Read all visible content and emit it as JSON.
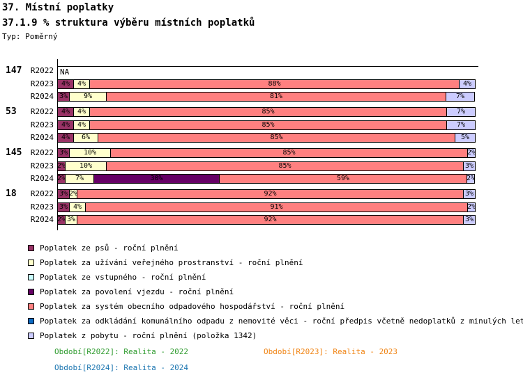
{
  "header": {
    "title": "37. Místní poplatky",
    "subtitle": "37.1.9 % struktura výběru místních poplatků",
    "type_label": "Typ: Poměrný"
  },
  "chart_data": {
    "type": "bar",
    "variant": "horizontal-stacked-percent",
    "unit": "%",
    "xlim": [
      0,
      100
    ],
    "grid": false,
    "na_text": "NA",
    "legend": [
      {
        "key": "psi",
        "label": "Poplatek ze psů - roční plnění",
        "color": "#993366"
      },
      {
        "key": "prostranstvi",
        "label": "Poplatek za užívání veřejného prostranství - roční plnění",
        "color": "#FFFFCC"
      },
      {
        "key": "vstupne",
        "label": "Poplatek ze vstupného - roční plnění",
        "color": "#CCFFFF"
      },
      {
        "key": "vjezd",
        "label": "Poplatek za povolení vjezdu - roční plnění",
        "color": "#660066"
      },
      {
        "key": "odpad",
        "label": "Poplatek za systém obecního odpadového hospodářství - roční plnění",
        "color": "#FF8080"
      },
      {
        "key": "odkladani",
        "label": "Poplatek za odkládání komunálního odpadu z nemovité věci - roční předpis včetně nedoplatků z minulých let",
        "color": "#0B6BC4"
      },
      {
        "key": "pobyt",
        "label": "Poplatek z pobytu - roční plnění (položka 1342)",
        "color": "#CCCCFF"
      }
    ],
    "groups": [
      {
        "label": "147",
        "rows": [
          {
            "period": "R2022",
            "na": true,
            "segments": []
          },
          {
            "period": "R2023",
            "na": false,
            "segments": [
              {
                "key": "psi",
                "value": 4
              },
              {
                "key": "prostranstvi",
                "value": 4
              },
              {
                "key": "odpad",
                "value": 88
              },
              {
                "key": "pobyt",
                "value": 4
              }
            ]
          },
          {
            "period": "R2024",
            "na": false,
            "segments": [
              {
                "key": "psi",
                "value": 3
              },
              {
                "key": "prostranstvi",
                "value": 9
              },
              {
                "key": "odpad",
                "value": 81
              },
              {
                "key": "pobyt",
                "value": 7
              }
            ]
          }
        ]
      },
      {
        "label": "53",
        "rows": [
          {
            "period": "R2022",
            "na": false,
            "segments": [
              {
                "key": "psi",
                "value": 4
              },
              {
                "key": "prostranstvi",
                "value": 4
              },
              {
                "key": "odpad",
                "value": 85
              },
              {
                "key": "pobyt",
                "value": 7
              }
            ]
          },
          {
            "period": "R2023",
            "na": false,
            "segments": [
              {
                "key": "psi",
                "value": 4
              },
              {
                "key": "prostranstvi",
                "value": 4
              },
              {
                "key": "odpad",
                "value": 85
              },
              {
                "key": "pobyt",
                "value": 7
              }
            ]
          },
          {
            "period": "R2024",
            "na": false,
            "segments": [
              {
                "key": "psi",
                "value": 4
              },
              {
                "key": "prostranstvi",
                "value": 6
              },
              {
                "key": "odpad",
                "value": 85
              },
              {
                "key": "pobyt",
                "value": 5
              }
            ]
          }
        ]
      },
      {
        "label": "145",
        "rows": [
          {
            "period": "R2022",
            "na": false,
            "segments": [
              {
                "key": "psi",
                "value": 3
              },
              {
                "key": "prostranstvi",
                "value": 10
              },
              {
                "key": "odpad",
                "value": 85
              },
              {
                "key": "pobyt",
                "value": 2
              }
            ]
          },
          {
            "period": "R2023",
            "na": false,
            "segments": [
              {
                "key": "psi",
                "value": 2
              },
              {
                "key": "prostranstvi",
                "value": 10
              },
              {
                "key": "odpad",
                "value": 85
              },
              {
                "key": "pobyt",
                "value": 3
              }
            ]
          },
          {
            "period": "R2024",
            "na": false,
            "segments": [
              {
                "key": "psi",
                "value": 2
              },
              {
                "key": "prostranstvi",
                "value": 7
              },
              {
                "key": "vjezd",
                "value": 30
              },
              {
                "key": "odpad",
                "value": 59
              },
              {
                "key": "pobyt",
                "value": 2
              }
            ]
          }
        ]
      },
      {
        "label": "18",
        "rows": [
          {
            "period": "R2022",
            "na": false,
            "segments": [
              {
                "key": "psi",
                "value": 3
              },
              {
                "key": "prostranstvi",
                "value": 2
              },
              {
                "key": "odpad",
                "value": 92
              },
              {
                "key": "pobyt",
                "value": 3
              }
            ]
          },
          {
            "period": "R2023",
            "na": false,
            "segments": [
              {
                "key": "psi",
                "value": 3
              },
              {
                "key": "prostranstvi",
                "value": 4
              },
              {
                "key": "odpad",
                "value": 91
              },
              {
                "key": "pobyt",
                "value": 2
              }
            ]
          },
          {
            "period": "R2024",
            "na": false,
            "segments": [
              {
                "key": "psi",
                "value": 2
              },
              {
                "key": "prostranstvi",
                "value": 3
              },
              {
                "key": "odpad",
                "value": 92
              },
              {
                "key": "pobyt",
                "value": 3
              }
            ]
          }
        ]
      }
    ]
  },
  "period_legend": [
    {
      "label": "Období[R2022]: Realita - 2022",
      "color": "#2E9B2E"
    },
    {
      "label": "Období[R2023]: Realita - 2023",
      "color": "#F08414"
    },
    {
      "label": "Období[R2024]: Realita - 2024",
      "color": "#1B75B0"
    }
  ]
}
